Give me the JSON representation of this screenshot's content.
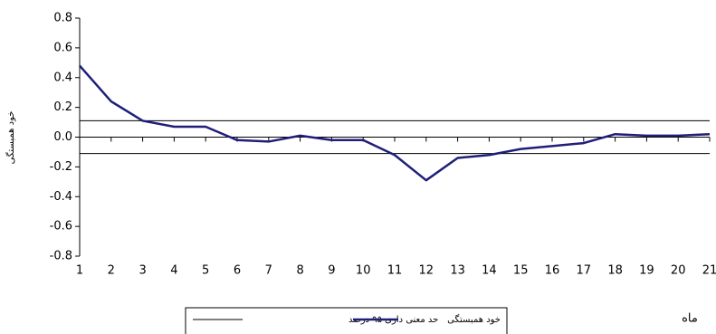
{
  "chart_data": {
    "type": "line",
    "x": [
      1,
      2,
      3,
      4,
      5,
      6,
      7,
      8,
      9,
      10,
      11,
      12,
      13,
      14,
      15,
      16,
      17,
      18,
      19,
      20,
      21
    ],
    "series": [
      {
        "name": "خود همبستگی",
        "color": "#1f1f7a",
        "values": [
          0.48,
          0.24,
          0.11,
          0.07,
          0.07,
          -0.02,
          -0.03,
          0.01,
          -0.02,
          -0.02,
          -0.12,
          -0.29,
          -0.14,
          -0.12,
          -0.08,
          -0.06,
          -0.04,
          0.02,
          0.01,
          0.01,
          0.02
        ]
      }
    ],
    "significance": {
      "name": "حد معنی داری ۹۵ درصد",
      "color": "#000000",
      "values": [
        0.11,
        -0.11
      ]
    },
    "xlim": [
      1,
      21
    ],
    "xticks": [
      1,
      2,
      3,
      4,
      5,
      6,
      7,
      8,
      9,
      10,
      11,
      12,
      13,
      14,
      15,
      16,
      17,
      18,
      19,
      20,
      21
    ],
    "ylim": [
      -0.8,
      0.8
    ],
    "yticks": [
      0.8,
      0.6,
      0.4,
      0.2,
      {
        "value": 0,
        "label": "0.0"
      },
      -0.2,
      -0.4,
      -0.6,
      -0.8
    ],
    "ylabel": "خود همبستگی",
    "xlabel": "ماه",
    "grid": false,
    "legend": "bottom"
  }
}
